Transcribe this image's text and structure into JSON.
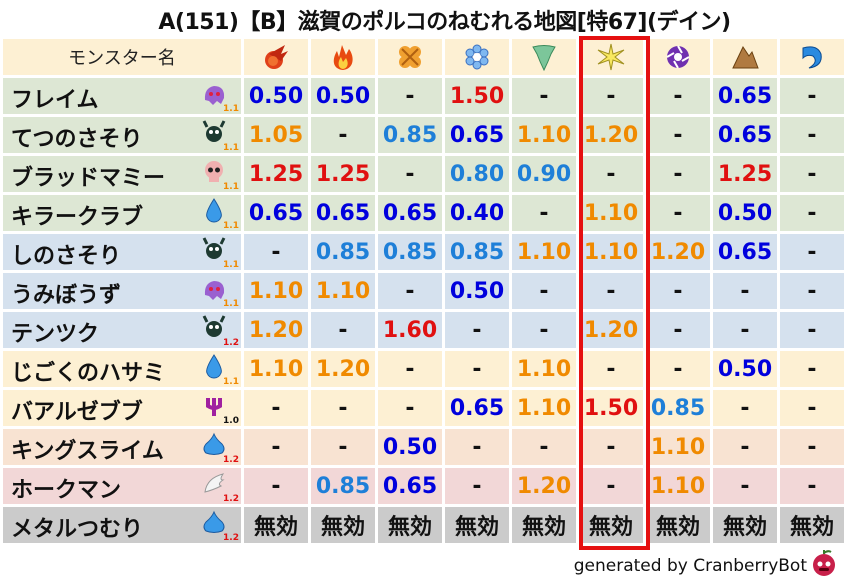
{
  "title": "A(151)【B】滋賀のポルコのねむれる地図[特67](デイン)",
  "header": {
    "name_label": "モンスター名",
    "elements": [
      "fire-ball-icon",
      "flame-icon",
      "explosion-icon",
      "ice-icon",
      "wind-icon",
      "light-icon",
      "dark-icon",
      "earth-icon",
      "water-icon"
    ],
    "highlighted_column": 6
  },
  "colors": {
    "strong_resist": "#0000dd",
    "resist": "#1e7fd8",
    "weak": "#f08a00",
    "very_weak": "#e01010",
    "neutral": "#111111",
    "highlight": "#e51010"
  },
  "rows": [
    {
      "name": "フレイム",
      "icon": "ghost",
      "level": "1.1",
      "level_color": "#f08a00",
      "bg": "#dde7d4",
      "values": [
        "0.50",
        "0.50",
        "-",
        "1.50",
        "-",
        "-",
        "-",
        "0.65",
        "-"
      ]
    },
    {
      "name": "てつのさそり",
      "icon": "bug",
      "level": "1.1",
      "level_color": "#f08a00",
      "bg": "#dde7d4",
      "values": [
        "1.05",
        "-",
        "0.85",
        "0.65",
        "1.10",
        "1.20",
        "-",
        "0.65",
        "-"
      ]
    },
    {
      "name": "ブラッドマミー",
      "icon": "skull",
      "level": "1.1",
      "level_color": "#f08a00",
      "bg": "#dde7d4",
      "values": [
        "1.25",
        "1.25",
        "-",
        "0.80",
        "0.90",
        "-",
        "-",
        "1.25",
        "-"
      ]
    },
    {
      "name": "キラークラブ",
      "icon": "drop",
      "level": "1.1",
      "level_color": "#f08a00",
      "bg": "#dde7d4",
      "values": [
        "0.65",
        "0.65",
        "0.65",
        "0.40",
        "-",
        "1.10",
        "-",
        "0.50",
        "-"
      ]
    },
    {
      "name": "しのさそり",
      "icon": "bug",
      "level": "1.1",
      "level_color": "#f08a00",
      "bg": "#d5e1ee",
      "values": [
        "-",
        "0.85",
        "0.85",
        "0.85",
        "1.10",
        "1.10",
        "1.20",
        "0.65",
        "-"
      ]
    },
    {
      "name": "うみぼうず",
      "icon": "ghost",
      "level": "1.1",
      "level_color": "#f08a00",
      "bg": "#d5e1ee",
      "values": [
        "1.10",
        "1.10",
        "-",
        "0.50",
        "-",
        "-",
        "-",
        "-",
        "-"
      ]
    },
    {
      "name": "テンツク",
      "icon": "bug",
      "level": "1.2",
      "level_color": "#e01010",
      "bg": "#d5e1ee",
      "values": [
        "1.20",
        "-",
        "1.60",
        "-",
        "-",
        "1.20",
        "-",
        "-",
        "-"
      ]
    },
    {
      "name": "じごくのハサミ",
      "icon": "drop",
      "level": "1.1",
      "level_color": "#f08a00",
      "bg": "#fdf0d3",
      "values": [
        "1.10",
        "1.20",
        "-",
        "-",
        "1.10",
        "-",
        "-",
        "0.50",
        "-"
      ]
    },
    {
      "name": "バアルゼブブ",
      "icon": "trident",
      "level": "1.0",
      "level_color": "#111111",
      "bg": "#fdf0d3",
      "values": [
        "-",
        "-",
        "-",
        "0.65",
        "1.10",
        "1.50",
        "0.85",
        "-",
        "-"
      ]
    },
    {
      "name": "キングスライム",
      "icon": "slime",
      "level": "1.2",
      "level_color": "#e01010",
      "bg": "#f8e3d2",
      "values": [
        "-",
        "-",
        "0.50",
        "-",
        "-",
        "-",
        "1.10",
        "-",
        "-"
      ]
    },
    {
      "name": "ホークマン",
      "icon": "wing",
      "level": "1.2",
      "level_color": "#e01010",
      "bg": "#f2d7d7",
      "values": [
        "-",
        "0.85",
        "0.65",
        "-",
        "1.20",
        "-",
        "1.10",
        "-",
        "-"
      ]
    },
    {
      "name": "メタルつむり",
      "icon": "slime",
      "level": "1.2",
      "level_color": "#e01010",
      "bg": "#cbcbcb",
      "values": [
        "無効",
        "無効",
        "無効",
        "無効",
        "無効",
        "無効",
        "無効",
        "無効",
        "無効"
      ]
    }
  ],
  "footer": {
    "text": "generated by CranberryBot"
  }
}
